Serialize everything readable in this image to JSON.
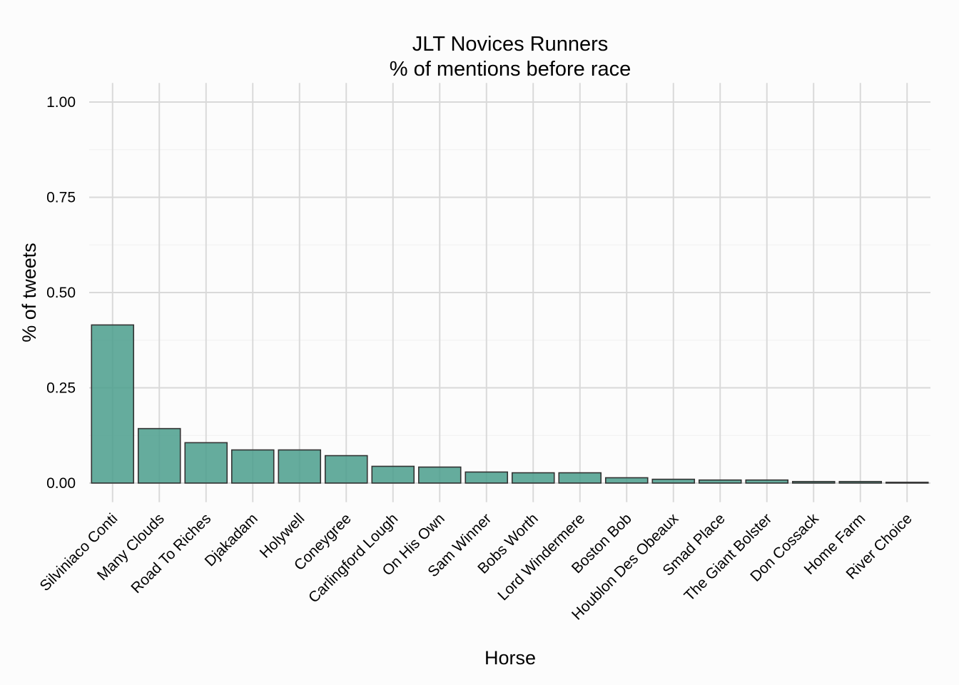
{
  "chart_data": {
    "type": "bar",
    "title": "JLT Novices Runners",
    "subtitle": "% of mentions before race",
    "xlabel": "Horse",
    "ylabel": "% of tweets",
    "categories": [
      "Silviniaco Conti",
      "Many Clouds",
      "Road To Riches",
      "Djakadam",
      "Holywell",
      "Coneygree",
      "Carlingford Lough",
      "On His Own",
      "Sam Winner",
      "Bobs Worth",
      "Lord Windermere",
      "Boston Bob",
      "Houblon Des Obeaux",
      "Smad Place",
      "The Giant Bolster",
      "Don Cossack",
      "Home Farm",
      "River Choice"
    ],
    "values": [
      0.415,
      0.143,
      0.106,
      0.087,
      0.087,
      0.072,
      0.044,
      0.042,
      0.029,
      0.027,
      0.027,
      0.014,
      0.01,
      0.008,
      0.008,
      0.004,
      0.004,
      0.002
    ],
    "ylim": [
      -0.05,
      1.05
    ],
    "yticks": [
      0,
      0.25,
      0.5,
      0.75,
      1.0
    ],
    "ytick_labels": [
      "0.00",
      "0.25",
      "0.50",
      "0.75",
      "1.00"
    ],
    "grid": true,
    "bar_color": "#4a9e8c",
    "bar_outline": "#333333",
    "background": "#fcfcfc"
  }
}
